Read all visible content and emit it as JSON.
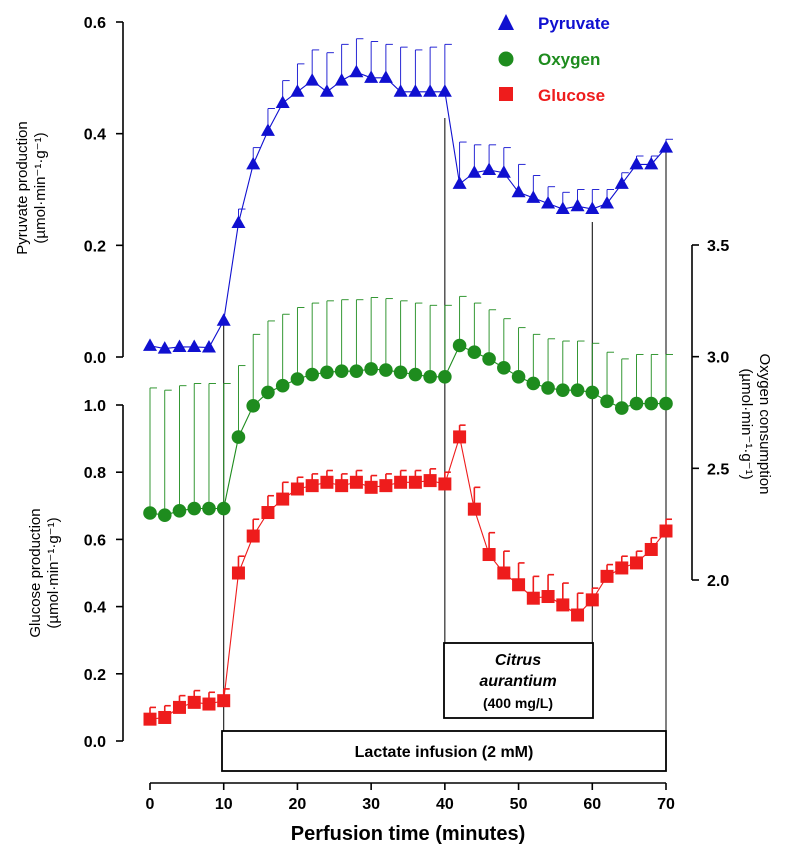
{
  "chart_data": {
    "type": "line",
    "title": "",
    "xlabel": "Perfusion time (minutes)",
    "xlim": [
      0,
      70
    ],
    "x_ticks": [
      0,
      10,
      20,
      30,
      40,
      50,
      60,
      70
    ],
    "axes": {
      "pyruvate": {
        "label_line1": "Pyruvate production",
        "label_line2": "(µmol·min⁻¹·g⁻¹)",
        "ylim": [
          0,
          0.6
        ],
        "ticks": [
          "0.0",
          "0.2",
          "0.4",
          "0.6"
        ]
      },
      "glucose": {
        "label_line1": "Glucose production",
        "label_line2": "(µmol·min⁻¹·g⁻¹)",
        "ylim": [
          0,
          1.0
        ],
        "ticks": [
          "0.0",
          "0.2",
          "0.4",
          "0.6",
          "0.8",
          "1.0"
        ]
      },
      "oxygen": {
        "label_line1": "Oxygen consumption",
        "label_line2": "(µmol·min⁻¹·g⁻¹)",
        "ylim": [
          2.0,
          3.5
        ],
        "ticks": [
          "2.0",
          "2.5",
          "3.0",
          "3.5"
        ]
      }
    },
    "legend": [
      {
        "name": "Pyruvate",
        "color": "#1010d0",
        "marker": "triangle"
      },
      {
        "name": "Oxygen",
        "color": "#1e8c1e",
        "marker": "circle"
      },
      {
        "name": "Glucose",
        "color": "#ee1c1c",
        "marker": "square"
      }
    ],
    "series": [
      {
        "name": "Pyruvate",
        "axis": "pyruvate",
        "color": "#1010d0",
        "marker": "triangle",
        "x": [
          0,
          2,
          4,
          6,
          8,
          10,
          12,
          14,
          16,
          18,
          20,
          22,
          24,
          26,
          28,
          30,
          32,
          34,
          36,
          38,
          40,
          42,
          44,
          46,
          48,
          50,
          52,
          54,
          56,
          58,
          60,
          62,
          64,
          66,
          68,
          70
        ],
        "values": [
          0.02,
          0.015,
          0.018,
          0.018,
          0.017,
          0.065,
          0.24,
          0.345,
          0.405,
          0.455,
          0.475,
          0.495,
          0.475,
          0.495,
          0.51,
          0.5,
          0.5,
          0.475,
          0.475,
          0.475,
          0.475,
          0.31,
          0.33,
          0.335,
          0.33,
          0.295,
          0.285,
          0.275,
          0.265,
          0.27,
          0.265,
          0.275,
          0.31,
          0.345,
          0.345,
          0.375
        ],
        "errors": [
          0,
          0,
          0,
          0,
          0,
          0,
          0.025,
          0.03,
          0.04,
          0.04,
          0.05,
          0.055,
          0.07,
          0.065,
          0.06,
          0.065,
          0.06,
          0.08,
          0.075,
          0.08,
          0.085,
          0.075,
          0.05,
          0.045,
          0.045,
          0.05,
          0.04,
          0.03,
          0.03,
          0.03,
          0.035,
          0.025,
          0.02,
          0.015,
          0.015,
          0.015
        ]
      },
      {
        "name": "Oxygen",
        "axis": "oxygen",
        "color": "#1e8c1e",
        "marker": "circle",
        "x": [
          0,
          2,
          4,
          6,
          8,
          10,
          12,
          14,
          16,
          18,
          20,
          22,
          24,
          26,
          28,
          30,
          32,
          34,
          36,
          38,
          40,
          42,
          44,
          46,
          48,
          50,
          52,
          54,
          56,
          58,
          60,
          62,
          64,
          66,
          68,
          70
        ],
        "values": [
          2.3,
          2.29,
          2.31,
          2.32,
          2.32,
          2.32,
          2.64,
          2.78,
          2.84,
          2.87,
          2.9,
          2.92,
          2.93,
          2.935,
          2.935,
          2.945,
          2.94,
          2.93,
          2.92,
          2.91,
          2.91,
          3.05,
          3.02,
          2.99,
          2.95,
          2.91,
          2.88,
          2.86,
          2.85,
          2.85,
          2.84,
          2.8,
          2.77,
          2.79,
          2.79,
          2.79
        ]
      },
      {
        "name": "Glucose",
        "axis": "glucose",
        "color": "#ee1c1c",
        "marker": "square",
        "x": [
          0,
          2,
          4,
          6,
          8,
          10,
          12,
          14,
          16,
          18,
          20,
          22,
          24,
          26,
          28,
          30,
          32,
          34,
          36,
          38,
          40,
          42,
          44,
          46,
          48,
          50,
          52,
          54,
          56,
          58,
          60,
          62,
          64,
          66,
          68,
          70
        ],
        "values": [
          0.065,
          0.07,
          0.1,
          0.115,
          0.11,
          0.12,
          0.5,
          0.61,
          0.68,
          0.72,
          0.75,
          0.76,
          0.77,
          0.76,
          0.77,
          0.755,
          0.76,
          0.77,
          0.77,
          0.775,
          0.765,
          0.905,
          0.69,
          0.555,
          0.5,
          0.465,
          0.425,
          0.43,
          0.405,
          0.375,
          0.42,
          0.49,
          0.515,
          0.53,
          0.57,
          0.625
        ]
      }
    ],
    "annotations": {
      "lactate": {
        "label": "Lactate infusion (2 mM)",
        "x_start": 10,
        "x_end": 70
      },
      "citrus": {
        "line1": "Citrus",
        "line2": "aurantium",
        "line3": "(400 mg/L)",
        "x_start": 40,
        "x_end": 60
      }
    }
  }
}
